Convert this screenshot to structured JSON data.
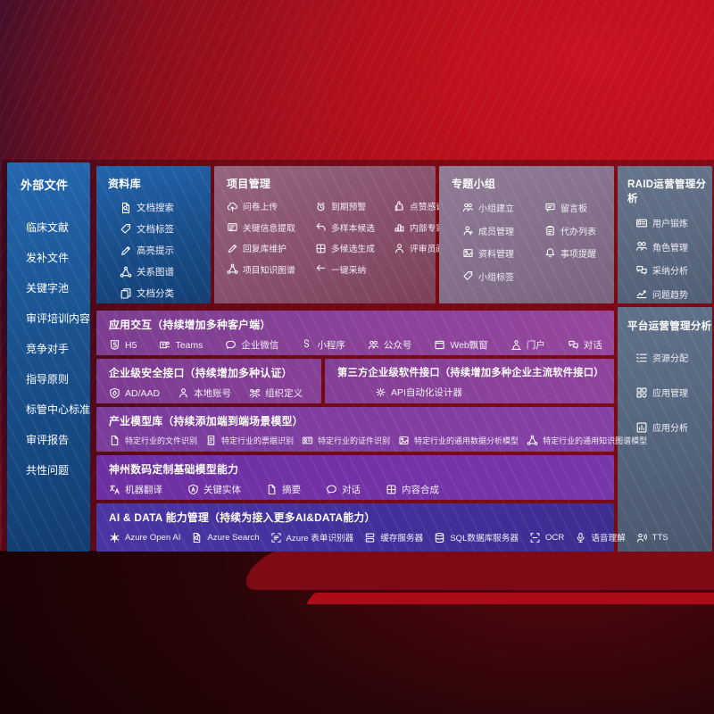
{
  "colors": {
    "background_red": "#b9121d",
    "background_navy": "#181031",
    "panel_blue": "#1d5ca3",
    "panel_mauve": "#8a5470",
    "panel_gray_purple": "#85718b",
    "panel_slate": "#5b6a80",
    "row_purple": "#7e3f93",
    "row_violet": "#6d2fa2",
    "row_indigo": "#45309b",
    "band_dark_red": "#7d0a15",
    "band_bright_red": "#ab0c17"
  },
  "sidebar": {
    "title": "外部文件",
    "items": [
      {
        "label": "临床文献"
      },
      {
        "label": "发补文件"
      },
      {
        "label": "关键字池"
      },
      {
        "label": "审评培训内容"
      },
      {
        "label": "竞争对手"
      },
      {
        "label": "指导原则"
      },
      {
        "label": "标管中心标准"
      },
      {
        "label": "审评报告"
      },
      {
        "label": "共性问题"
      }
    ]
  },
  "panels": {
    "repo": {
      "title": "资料库",
      "items": [
        {
          "label": "文档搜索",
          "icon": "doc-search"
        },
        {
          "label": "文档标签",
          "icon": "tag"
        },
        {
          "label": "高亮提示",
          "icon": "pen"
        },
        {
          "label": "关系图谱",
          "icon": "graph"
        },
        {
          "label": "文档分类",
          "icon": "copy"
        }
      ]
    },
    "project": {
      "title": "项目管理",
      "items": [
        {
          "label": "问卷上传",
          "icon": "cloud-upload"
        },
        {
          "label": "到期预警",
          "icon": "alarm"
        },
        {
          "label": "点赞感谢",
          "icon": "thumb"
        },
        {
          "label": "关键信息提取",
          "icon": "extract"
        },
        {
          "label": "多样本候选",
          "icon": "reply"
        },
        {
          "label": "内部专家排名",
          "icon": "podium"
        },
        {
          "label": "回复库维护",
          "icon": "pen"
        },
        {
          "label": "多候选生成",
          "icon": "grid"
        },
        {
          "label": "评审员画像",
          "icon": "person"
        },
        {
          "label": "项目知识图谱",
          "icon": "graph"
        },
        {
          "label": "一键采纳",
          "icon": "adopt"
        }
      ]
    },
    "group": {
      "title": "专题小组",
      "items": [
        {
          "label": "小组建立",
          "icon": "people"
        },
        {
          "label": "留言板",
          "icon": "bbs"
        },
        {
          "label": "成员管理",
          "icon": "person-add"
        },
        {
          "label": "代办列表",
          "icon": "clipboard"
        },
        {
          "label": "资料管理",
          "icon": "photo"
        },
        {
          "label": "事项提醒",
          "icon": "bell"
        },
        {
          "label": "小组标签",
          "icon": "tag"
        }
      ]
    },
    "raid": {
      "title": "RAID运营管理分析",
      "items": [
        {
          "label": "用户锻炼",
          "icon": "id-card"
        },
        {
          "label": "角色管理",
          "icon": "people"
        },
        {
          "label": "采纳分析",
          "icon": "dialog"
        },
        {
          "label": "问题趋势",
          "icon": "trend"
        }
      ]
    },
    "platform": {
      "title": "平台运营管理分析",
      "items": [
        {
          "label": "资源分配",
          "icon": "list"
        },
        {
          "label": "应用管理",
          "icon": "apps"
        },
        {
          "label": "应用分析",
          "icon": "chart-box"
        }
      ]
    },
    "interaction": {
      "title": "应用交互（持续增加多种客户端）",
      "items": [
        {
          "label": "H5",
          "icon": "h5"
        },
        {
          "label": "Teams",
          "icon": "teams"
        },
        {
          "label": "企业微信",
          "icon": "chat"
        },
        {
          "label": "小程序",
          "icon": "loop"
        },
        {
          "label": "公众号",
          "icon": "people"
        },
        {
          "label": "Web飘窗",
          "icon": "window"
        },
        {
          "label": "门户",
          "icon": "portal"
        },
        {
          "label": "对话",
          "icon": "dialog"
        }
      ]
    },
    "security": {
      "title": "企业级安全接口（持续增加多种认证）",
      "items": [
        {
          "label": "AD/AAD",
          "icon": "shield"
        },
        {
          "label": "本地账号",
          "icon": "person"
        },
        {
          "label": "组织定义",
          "icon": "org"
        }
      ]
    },
    "thirdparty": {
      "title": "第三方企业级软件接口（持续增加多种企业主流软件接口）",
      "items": [
        {
          "label": "API自动化设计器",
          "icon": "gear"
        }
      ]
    },
    "industry": {
      "title": "产业模型库（持续添加端到端场景模型）",
      "items": [
        {
          "label": "特定行业的文件识别",
          "icon": "doc"
        },
        {
          "label": "特定行业的票据识别",
          "icon": "receipt"
        },
        {
          "label": "特定行业的证件识别",
          "icon": "cert"
        },
        {
          "label": "特定行业的通用数据分析模型",
          "icon": "photo"
        },
        {
          "label": "特定行业的通用知识图谱模型",
          "icon": "graph"
        }
      ]
    },
    "foundation": {
      "title": "神州数码定制基础模型能力",
      "items": [
        {
          "label": "机器翻译",
          "icon": "translate"
        },
        {
          "label": "关键实体",
          "icon": "shield-a"
        },
        {
          "label": "摘要",
          "icon": "doc"
        },
        {
          "label": "对话",
          "icon": "chat"
        },
        {
          "label": "内容合成",
          "icon": "grid"
        }
      ]
    },
    "aidata": {
      "title": "AI & DATA 能力管理（持续为接入更多AI&DATA能力）",
      "items": [
        {
          "label": "Azure Open AI",
          "icon": "openai"
        },
        {
          "label": "Azure Search",
          "icon": "doc-search"
        },
        {
          "label": "Azure 表单识别器",
          "icon": "form"
        },
        {
          "label": "缓存服务器",
          "icon": "server"
        },
        {
          "label": "SQL数据库服务器",
          "icon": "db"
        },
        {
          "label": "OCR",
          "icon": "ocr"
        },
        {
          "label": "语音理解",
          "icon": "mic"
        },
        {
          "label": "TTS",
          "icon": "tts"
        }
      ]
    }
  }
}
